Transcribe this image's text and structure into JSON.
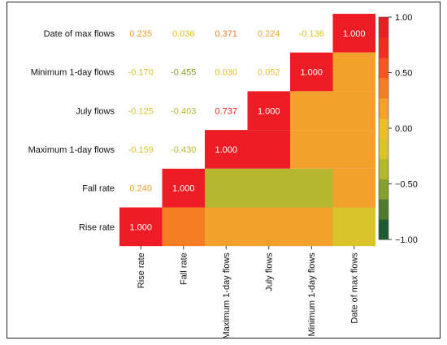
{
  "chart_data": {
    "type": "heatmap",
    "title": "",
    "row_labels": [
      "Date of max flows",
      "Minimum 1-day flows",
      "July flows",
      "Maximum 1-day flows",
      "Fall rate",
      "Rise rate"
    ],
    "col_labels": [
      "Rise rate",
      "Fall rate",
      "Maximum 1-day flows",
      "July flows",
      "Minimum 1-day flows",
      "Date of max flows"
    ],
    "upper_values": [
      [
        "0.235",
        "0.036",
        "0.371",
        "0.224",
        "-0.136",
        "1.000"
      ],
      [
        "-0.170",
        "-0.455",
        "0.030",
        "0.052",
        "1.000",
        null
      ],
      [
        "-0.125",
        "-0.403",
        "0.737",
        "1.000",
        null,
        null
      ],
      [
        "-0.159",
        "-0.430",
        "1.000",
        null,
        null,
        null
      ],
      [
        "0.240",
        "1.000",
        null,
        null,
        null,
        null
      ],
      [
        "1.000",
        null,
        null,
        null,
        null,
        null
      ]
    ],
    "lower_cell_levels": [
      [
        null,
        null,
        null,
        null,
        null,
        null
      ],
      [
        null,
        null,
        null,
        null,
        null,
        0.1
      ],
      [
        null,
        null,
        null,
        null,
        0.1,
        0.25
      ],
      [
        null,
        null,
        null,
        0.85,
        0.1,
        0.25
      ],
      [
        null,
        null,
        -0.45,
        -0.45,
        -0.45,
        0.1
      ],
      [
        null,
        0.35,
        0.1,
        0.1,
        0.1,
        -0.1
      ]
    ],
    "colorbar": {
      "ticks": [
        "1.00",
        "0.50",
        "0.00",
        "−0.50",
        "−1.00"
      ],
      "tick_values": [
        1.0,
        0.5,
        0.0,
        -0.5,
        -1.0
      ],
      "range": [
        -1,
        1
      ],
      "colors": [
        "#1e5a32",
        "#4f7a2c",
        "#86a12e",
        "#b3b82e",
        "#d9c42c",
        "#ecbe2a",
        "#f2a12a",
        "#f57e25",
        "#f5571f",
        "#f22c1f",
        "#ee1c24"
      ]
    }
  }
}
